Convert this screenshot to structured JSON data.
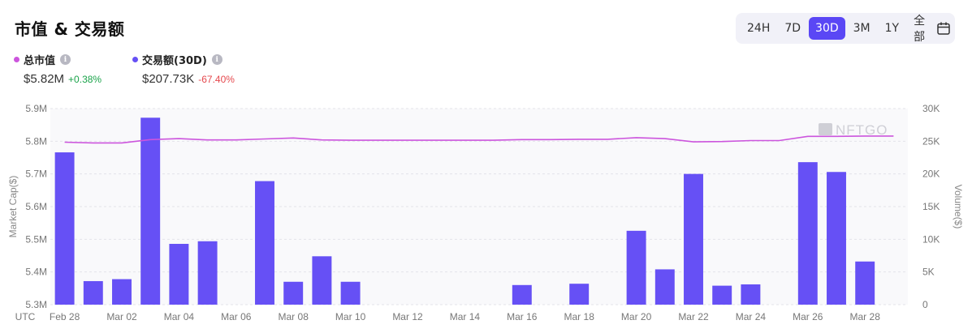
{
  "title": "市值 & 交易额",
  "ranges": [
    "24H",
    "7D",
    "30D",
    "3M",
    "1Y",
    "全部"
  ],
  "active_range": "30D",
  "legend": {
    "market_cap": {
      "label": "总市值",
      "value": "$5.82M",
      "change": "+0.38%",
      "color": "#cc55dd"
    },
    "volume": {
      "label": "交易额(30D)",
      "value": "$207.73K",
      "change": "-67.40%",
      "color": "#6650f5"
    }
  },
  "info_icon_glyph": "i",
  "watermark": "NFTGO",
  "chart_data": {
    "type": "bar+line",
    "timezone_label": "UTC",
    "x": [
      "Feb 28",
      "Mar 01",
      "Mar 02",
      "Mar 03",
      "Mar 04",
      "Mar 05",
      "Mar 06",
      "Mar 07",
      "Mar 08",
      "Mar 09",
      "Mar 10",
      "Mar 11",
      "Mar 12",
      "Mar 13",
      "Mar 14",
      "Mar 15",
      "Mar 16",
      "Mar 17",
      "Mar 18",
      "Mar 19",
      "Mar 20",
      "Mar 21",
      "Mar 22",
      "Mar 23",
      "Mar 24",
      "Mar 25",
      "Mar 26",
      "Mar 27",
      "Mar 28",
      "Mar 29"
    ],
    "x_tick_labels": [
      "Feb 28",
      "Mar 02",
      "Mar 04",
      "Mar 06",
      "Mar 08",
      "Mar 10",
      "Mar 12",
      "Mar 14",
      "Mar 16",
      "Mar 18",
      "Mar 20",
      "Mar 22",
      "Mar 24",
      "Mar 26",
      "Mar 28"
    ],
    "series": [
      {
        "name": "交易额(30D)",
        "type": "bar",
        "axis": "right",
        "color": "#6650f5",
        "values": [
          23300,
          3600,
          3900,
          28600,
          9300,
          9700,
          0,
          18900,
          3500,
          7400,
          3500,
          0,
          0,
          0,
          0,
          0,
          3000,
          0,
          3200,
          0,
          11300,
          5400,
          20000,
          2900,
          3100,
          0,
          21800,
          20300,
          6600,
          0
        ]
      },
      {
        "name": "总市值",
        "type": "line",
        "axis": "left",
        "color": "#cc55dd",
        "values": [
          5.797,
          5.795,
          5.795,
          5.805,
          5.808,
          5.804,
          5.804,
          5.807,
          5.81,
          5.804,
          5.803,
          5.803,
          5.803,
          5.803,
          5.803,
          5.803,
          5.805,
          5.805,
          5.806,
          5.806,
          5.811,
          5.808,
          5.798,
          5.799,
          5.802,
          5.802,
          5.815,
          5.815,
          5.816,
          5.816
        ]
      }
    ],
    "ylabel_left": "Market Cap($)",
    "ylabel_right": "Volume($)",
    "ylim_left": [
      5.3,
      5.9
    ],
    "ylim_right": [
      0,
      30000
    ],
    "y_left_ticks": [
      "5.3M",
      "5.4M",
      "5.5M",
      "5.6M",
      "5.7M",
      "5.8M",
      "5.9M"
    ],
    "y_right_ticks": [
      "0",
      "5K",
      "10K",
      "15K",
      "20K",
      "25K",
      "30K"
    ],
    "grid": true
  }
}
